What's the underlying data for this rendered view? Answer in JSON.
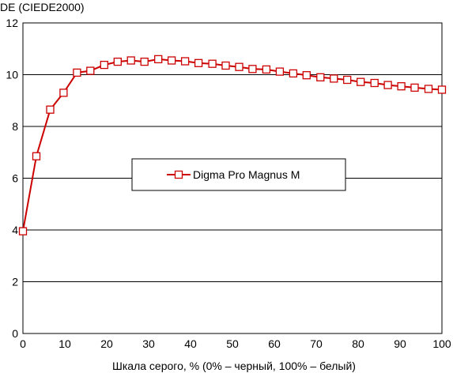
{
  "chart_data": {
    "type": "line",
    "title": "",
    "ylabel": "DE (CIEDE2000)",
    "xlabel": "Шкала серого, % (0% – черный, 100% – белый)",
    "xlim": [
      0,
      100
    ],
    "ylim": [
      0,
      12
    ],
    "xticks": [
      "0",
      "10",
      "20",
      "30",
      "40",
      "50",
      "60",
      "70",
      "80",
      "90",
      "100"
    ],
    "yticks": [
      "0",
      "2",
      "4",
      "6",
      "8",
      "10",
      "12"
    ],
    "grid": "horizontal",
    "legend_position": "center",
    "series": [
      {
        "name": "Digma Pro Magnus M",
        "color": "#cc0000",
        "marker": "square-open",
        "x": [
          0,
          3.2,
          6.5,
          9.7,
          12.9,
          16.1,
          19.4,
          22.6,
          25.8,
          29.0,
          32.3,
          35.5,
          38.7,
          41.9,
          45.2,
          48.4,
          51.6,
          54.8,
          58.1,
          61.3,
          64.5,
          67.7,
          71.0,
          74.2,
          77.4,
          80.6,
          83.9,
          87.1,
          90.3,
          93.5,
          96.8,
          100
        ],
        "y": [
          3.95,
          6.85,
          8.65,
          9.3,
          10.08,
          10.15,
          10.38,
          10.5,
          10.55,
          10.5,
          10.6,
          10.55,
          10.52,
          10.45,
          10.42,
          10.35,
          10.3,
          10.22,
          10.2,
          10.12,
          10.05,
          9.98,
          9.9,
          9.85,
          9.8,
          9.72,
          9.68,
          9.6,
          9.55,
          9.5,
          9.45,
          9.42
        ]
      }
    ]
  }
}
